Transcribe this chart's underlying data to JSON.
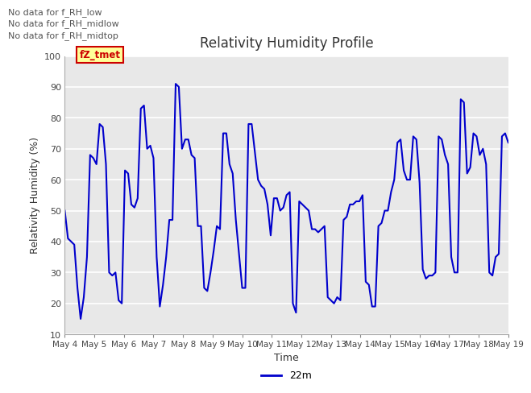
{
  "title": "Relativity Humidity Profile",
  "xlabel": "Time",
  "ylabel": "Relativity Humidity (%)",
  "ylim": [
    10,
    100
  ],
  "yticks": [
    10,
    20,
    30,
    40,
    50,
    60,
    70,
    80,
    90,
    100
  ],
  "line_color": "#0000cc",
  "line_width": 1.5,
  "legend_label": "22m",
  "fig_bg_color": "#ffffff",
  "plot_bg_color": "#e8e8e8",
  "no_data_texts": [
    "No data for f_RH_low",
    "No data for f_RH_midlow",
    "No data for f_RH_midtop"
  ],
  "annotation_text": "fZ_tmet",
  "annotation_color": "#cc0000",
  "annotation_bg": "#ffff99",
  "x_tick_labels": [
    "May 4",
    "May 5",
    "May 6",
    "May 7",
    "May 8",
    "May 9",
    "May 10",
    "May 11",
    "May 12",
    "May 13",
    "May 14",
    "May 15",
    "May 16",
    "May 17",
    "May 18",
    "May 19"
  ],
  "y_data": [
    50,
    41,
    40,
    39,
    25,
    15,
    22,
    35,
    68,
    67,
    65,
    78,
    77,
    65,
    30,
    29,
    30,
    21,
    20,
    63,
    62,
    52,
    51,
    54,
    83,
    84,
    70,
    71,
    67,
    35,
    19,
    26,
    35,
    47,
    47,
    91,
    90,
    70,
    73,
    73,
    68,
    67,
    45,
    45,
    25,
    24,
    30,
    37,
    45,
    44,
    75,
    75,
    65,
    62,
    47,
    36,
    25,
    25,
    78,
    78,
    69,
    60,
    58,
    57,
    52,
    42,
    54,
    54,
    50,
    51,
    55,
    56,
    20,
    17,
    53,
    52,
    51,
    50,
    44,
    44,
    43,
    44,
    45,
    22,
    21,
    20,
    22,
    21,
    47,
    48,
    52,
    52,
    53,
    53,
    55,
    27,
    26,
    19,
    19,
    45,
    46,
    50,
    50,
    56,
    60,
    72,
    73,
    63,
    60,
    60,
    74,
    73,
    59,
    31,
    28,
    29,
    29,
    30,
    74,
    73,
    68,
    65,
    35,
    30,
    30,
    86,
    85,
    62,
    64,
    75,
    74,
    68,
    70,
    65,
    30,
    29,
    35,
    36,
    74,
    75,
    72
  ]
}
